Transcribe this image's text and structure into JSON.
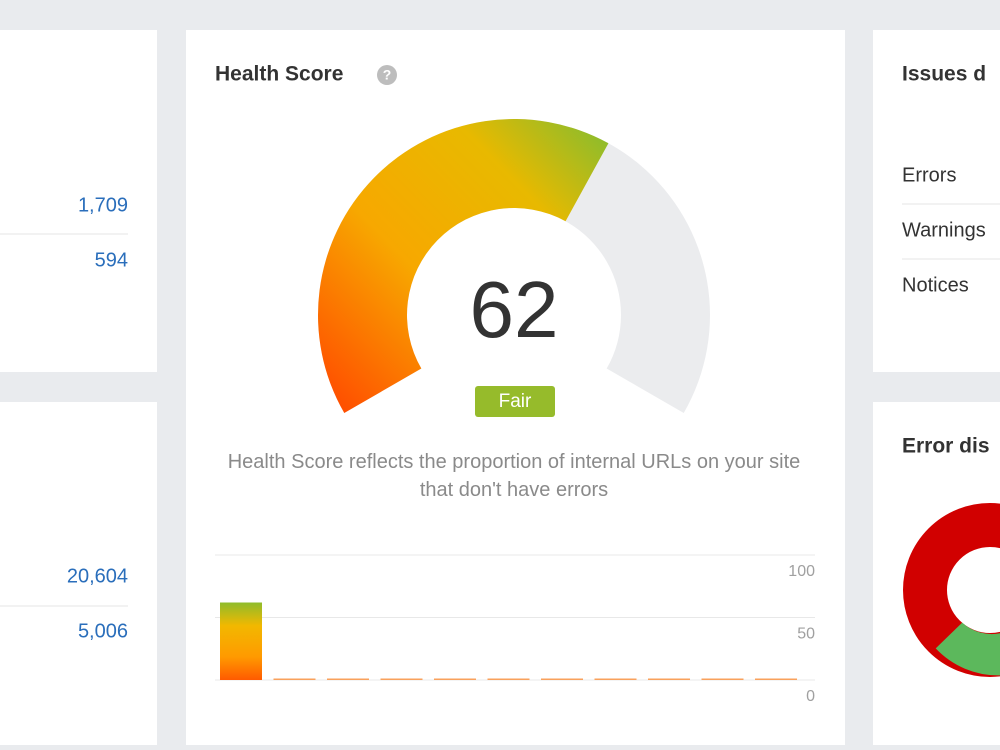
{
  "left_panels": [
    {
      "values": [
        "1,709",
        "594"
      ]
    },
    {
      "values": [
        "20,604",
        "5,006"
      ]
    }
  ],
  "health_score": {
    "title": "Health Score",
    "score": 62,
    "gauge_lim": [
      0,
      100
    ],
    "rating": "Fair",
    "description": "Health Score reflects the proportion of internal URLs on your site that don't have errors",
    "chart_data": {
      "type": "bar",
      "values": [
        62,
        0,
        0,
        0,
        0,
        0,
        0,
        0,
        0,
        0,
        0
      ],
      "ylim": [
        0,
        100
      ],
      "yticks": [
        0,
        50,
        100
      ],
      "grid": true
    }
  },
  "issues": {
    "title": "Issues d",
    "rows": [
      "Errors",
      "Warnings",
      "Notices"
    ]
  },
  "error_distribution": {
    "title": "Error dis"
  }
}
